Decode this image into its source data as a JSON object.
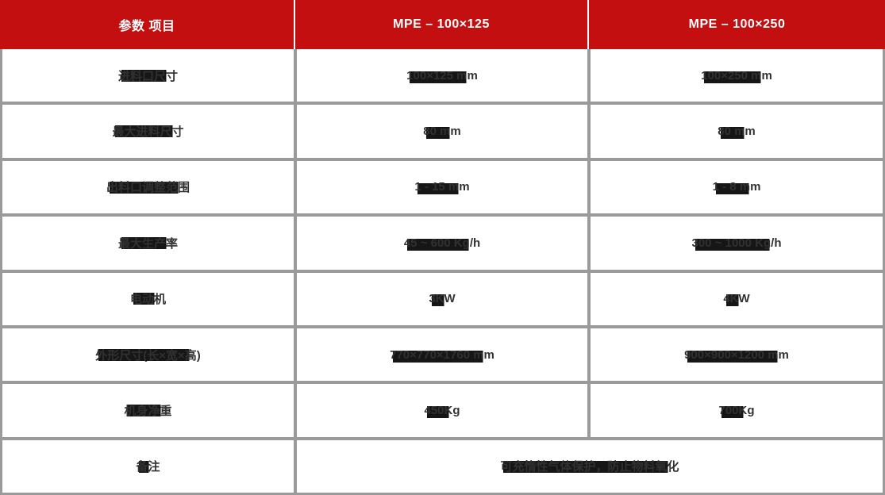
{
  "table": {
    "header": {
      "param_column": "参数 项目",
      "model_1": "MPE – 100×125",
      "model_2": "MPE – 100×250"
    },
    "rows": [
      {
        "label": "进料口尺寸",
        "model_1": "100×125 mm",
        "model_2": "100×250 mm"
      },
      {
        "label": "最大进料尺寸",
        "model_1": "80 mm",
        "model_2": "80 mm"
      },
      {
        "label": "出料口调整范围",
        "model_1": "1 - 15 mm",
        "model_2": "1 - 8 mm"
      },
      {
        "label": "最大生产率",
        "model_1": "45 ~ 600 Kg/h",
        "model_2": "300 ~ 1000 Kg/h"
      },
      {
        "label": "电动机",
        "model_1": "3KW",
        "model_2": "4KW"
      },
      {
        "label": "外形尺寸(长×宽×高)",
        "model_1": "770×770×1760 mm",
        "model_2": "900×900×1200 mm"
      },
      {
        "label": "机身净重",
        "model_1": "450Kg",
        "model_2": "700Kg"
      }
    ],
    "footer": {
      "label": "备注",
      "value": "可充惰性气体保护，防止物料氧化"
    }
  },
  "colors": {
    "header_bg": "#c40f10",
    "header_text": "#ffffff",
    "border": "#9a9a9a",
    "cell_text": "#313131",
    "highlight_band": "#161616"
  }
}
